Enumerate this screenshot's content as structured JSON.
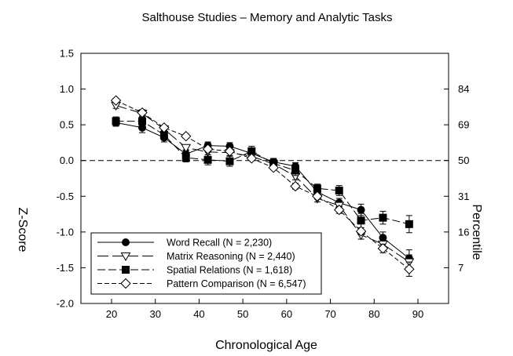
{
  "chart_data": {
    "type": "line",
    "title": "Salthouse Studies – Memory and Analytic Tasks",
    "xlabel": "Chronological Age",
    "ylabel": "Z-Score",
    "y2label": "Percentile",
    "xlim": [
      13,
      97
    ],
    "ylim": [
      -2.0,
      1.5
    ],
    "x_ticks": [
      "20",
      "30",
      "40",
      "50",
      "60",
      "70",
      "80",
      "90"
    ],
    "y_ticks": [
      "1.5",
      "1.0",
      "0.5",
      "0.0",
      "-0.5",
      "-1.0",
      "-1.5",
      "-2.0"
    ],
    "y2_ticks": [
      {
        "label": "84",
        "z": 1.0
      },
      {
        "label": "69",
        "z": 0.5
      },
      {
        "label": "50",
        "z": 0.0
      },
      {
        "label": "31",
        "z": -0.5
      },
      {
        "label": "16",
        "z": -1.0
      },
      {
        "label": "7",
        "z": -1.5
      }
    ],
    "reference_line": 0.0,
    "legend_position": "lower-left",
    "series": [
      {
        "name": "Word Recall (N = 2,230)",
        "marker": "filled-circle",
        "dash": "solid",
        "x": [
          21,
          27,
          32,
          37,
          42,
          47,
          52,
          57,
          62,
          67,
          72,
          77,
          82,
          88
        ],
        "y": [
          0.53,
          0.46,
          0.32,
          0.09,
          0.21,
          0.2,
          0.1,
          -0.02,
          -0.08,
          -0.44,
          -0.59,
          -0.69,
          -1.08,
          -1.37
        ],
        "err": [
          0.05,
          0.07,
          0.06,
          0.06,
          0.05,
          0.05,
          0.05,
          0.05,
          0.05,
          0.06,
          0.06,
          0.08,
          0.08,
          0.12
        ]
      },
      {
        "name": "Matrix Reasoning (N = 2,440)",
        "marker": "open-triangle-down",
        "dash": "long",
        "x": [
          21,
          27,
          32,
          37,
          42,
          47,
          52,
          57,
          62,
          67,
          72,
          77,
          82,
          88
        ],
        "y": [
          0.77,
          0.66,
          0.44,
          0.18,
          0.12,
          0.11,
          0.06,
          -0.05,
          -0.22,
          -0.53,
          -0.63,
          -1.04,
          -1.17,
          -1.42
        ],
        "err": [
          0.04,
          0.05,
          0.04,
          0.04,
          0.04,
          0.04,
          0.04,
          0.04,
          0.05,
          0.05,
          0.06,
          0.06,
          0.07,
          0.1
        ]
      },
      {
        "name": "Spatial Relations (N = 1,618)",
        "marker": "filled-square",
        "dash": "medium",
        "x": [
          21,
          27,
          32,
          37,
          42,
          47,
          52,
          57,
          62,
          67,
          72,
          77,
          82,
          88
        ],
        "y": [
          0.55,
          0.55,
          0.36,
          0.04,
          0.01,
          -0.01,
          0.13,
          -0.04,
          -0.14,
          -0.39,
          -0.42,
          -0.84,
          -0.8,
          -0.89
        ],
        "err": [
          0.06,
          0.07,
          0.06,
          0.06,
          0.07,
          0.07,
          0.07,
          0.06,
          0.07,
          0.06,
          0.07,
          0.1,
          0.09,
          0.12
        ]
      },
      {
        "name": "Pattern Comparison (N = 6,547)",
        "marker": "open-diamond",
        "dash": "short",
        "x": [
          21,
          27,
          32,
          37,
          42,
          47,
          52,
          57,
          62,
          67,
          72,
          77,
          82,
          88
        ],
        "y": [
          0.84,
          0.67,
          0.46,
          0.34,
          0.16,
          0.13,
          0.03,
          -0.1,
          -0.36,
          -0.5,
          -0.69,
          -0.99,
          -1.23,
          -1.52
        ],
        "err": [
          0.03,
          0.03,
          0.03,
          0.03,
          0.03,
          0.03,
          0.03,
          0.03,
          0.04,
          0.04,
          0.05,
          0.05,
          0.06,
          0.1
        ]
      }
    ]
  }
}
